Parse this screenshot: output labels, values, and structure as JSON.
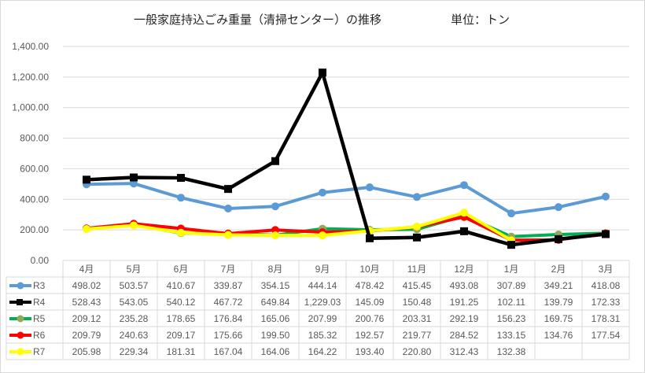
{
  "chart_data": {
    "type": "line",
    "title": "一般家庭持込ごみ重量（清掃センター）の推移",
    "unit_label": "単位：トン",
    "categories": [
      "4月",
      "5月",
      "6月",
      "7月",
      "8月",
      "9月",
      "10月",
      "11月",
      "12月",
      "1月",
      "2月",
      "3月"
    ],
    "ylim": [
      0,
      1400
    ],
    "yticks": [
      "0.00",
      "200.00",
      "400.00",
      "600.00",
      "800.00",
      "1,000.00",
      "1,200.00",
      "1,400.00"
    ],
    "grid": true,
    "legend": "data-table",
    "series": [
      {
        "name": "R3",
        "color": "#5b9bd5",
        "marker": "circle",
        "marker_color": "#5b9bd5",
        "values": [
          498.02,
          503.57,
          410.67,
          339.87,
          354.15,
          444.14,
          478.42,
          415.45,
          493.08,
          307.89,
          349.21,
          418.08
        ],
        "labels": [
          "498.02",
          "503.57",
          "410.67",
          "339.87",
          "354.15",
          "444.14",
          "478.42",
          "415.45",
          "493.08",
          "307.89",
          "349.21",
          "418.08"
        ]
      },
      {
        "name": "R4",
        "color": "#000000",
        "marker": "square",
        "marker_color": "#000000",
        "values": [
          528.43,
          543.05,
          540.12,
          467.72,
          649.84,
          1229.03,
          145.09,
          150.48,
          191.25,
          102.11,
          139.79,
          172.33
        ],
        "labels": [
          "528.43",
          "543.05",
          "540.12",
          "467.72",
          "649.84",
          "1,229.03",
          "145.09",
          "150.48",
          "191.25",
          "102.11",
          "139.79",
          "172.33"
        ]
      },
      {
        "name": "R5",
        "color": "#00b050",
        "marker": "circle",
        "marker_color": "#8faa5c",
        "values": [
          209.12,
          235.28,
          178.65,
          176.84,
          165.06,
          207.99,
          200.76,
          203.31,
          292.19,
          156.23,
          169.75,
          178.31
        ],
        "labels": [
          "209.12",
          "235.28",
          "178.65",
          "176.84",
          "165.06",
          "207.99",
          "200.76",
          "203.31",
          "292.19",
          "156.23",
          "169.75",
          "178.31"
        ]
      },
      {
        "name": "R6",
        "color": "#ff0000",
        "marker": "circle",
        "marker_color": "#ff0000",
        "values": [
          209.79,
          240.63,
          209.17,
          175.66,
          199.5,
          185.32,
          192.57,
          219.77,
          284.52,
          133.15,
          134.76,
          177.54
        ],
        "labels": [
          "209.79",
          "240.63",
          "209.17",
          "175.66",
          "199.50",
          "185.32",
          "192.57",
          "219.77",
          "284.52",
          "133.15",
          "134.76",
          "177.54"
        ]
      },
      {
        "name": "R7",
        "color": "#ffff00",
        "marker": "circle",
        "marker_color": "#ffff00",
        "values": [
          205.98,
          229.34,
          181.31,
          167.04,
          164.06,
          164.22,
          193.4,
          220.8,
          312.43,
          132.38,
          null,
          null
        ],
        "labels": [
          "205.98",
          "229.34",
          "181.31",
          "167.04",
          "164.06",
          "164.22",
          "193.40",
          "220.80",
          "312.43",
          "132.38",
          "",
          ""
        ]
      }
    ]
  }
}
